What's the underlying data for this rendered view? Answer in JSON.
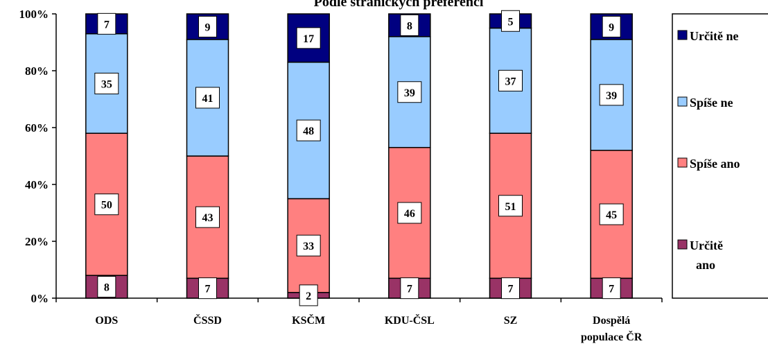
{
  "chart_data": {
    "type": "bar",
    "stacked": true,
    "percent": true,
    "title": "Podle stranických preferencí",
    "categories": [
      [
        "ODS"
      ],
      [
        "ČSSD"
      ],
      [
        "KSČM"
      ],
      [
        "KDU-ČSL"
      ],
      [
        "SZ"
      ],
      [
        "Dospělá",
        "populace ČR"
      ]
    ],
    "series": [
      {
        "name": "Určitě ano",
        "color": "#993366",
        "values": [
          8,
          7,
          2,
          7,
          7,
          7
        ]
      },
      {
        "name": "Spíše ano",
        "color": "#FF8080",
        "values": [
          50,
          43,
          33,
          46,
          51,
          45
        ]
      },
      {
        "name": "Spíše ne",
        "color": "#99CCFF",
        "values": [
          35,
          41,
          48,
          39,
          37,
          39
        ]
      },
      {
        "name": "Určitě ne",
        "color": "#000080",
        "values": [
          7,
          9,
          17,
          8,
          5,
          9
        ]
      }
    ],
    "legend_order": [
      "Určitě ne",
      "Spíše ne",
      "Spíše ano",
      "Určitě ano"
    ],
    "legend_labels": {
      "Určitě ne": [
        "Určitě ne"
      ],
      "Spíše ne": [
        "Spíše ne"
      ],
      "Spíše ano": [
        "Spíše ano"
      ],
      "Určitě ano": [
        "Určitě",
        "ano"
      ]
    },
    "yticks": [
      "0%",
      "20%",
      "40%",
      "60%",
      "80%",
      "100%"
    ],
    "ylim": [
      0,
      100
    ],
    "legend_position": "right",
    "grid": false
  }
}
